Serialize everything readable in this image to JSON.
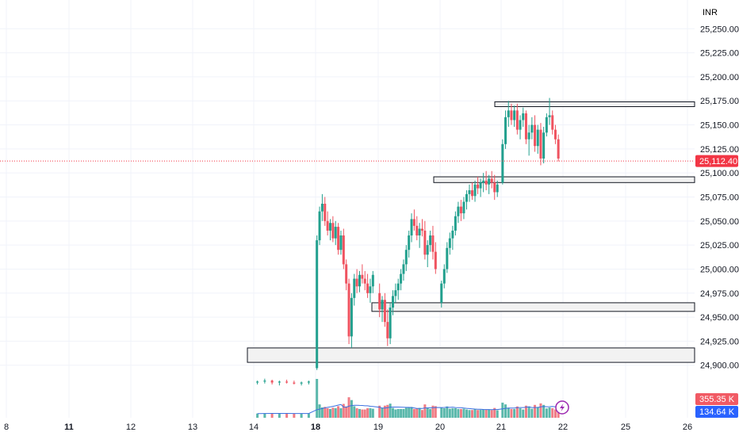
{
  "currency_label": "INR",
  "colors": {
    "up": "#22a08e",
    "down": "#ef5360",
    "up_volume": "#5ab8ab",
    "down_volume": "#f07c85",
    "volume_ma": "#3b6fe0",
    "grid": "#f0f3fa",
    "axis_text": "#131722",
    "price_line": "#f23645",
    "zone_fill": "#f2f2f2",
    "zone_border": "#131722",
    "vol_badge_1": "#f15a64",
    "vol_badge_2": "#2962ff"
  },
  "chart_data": {
    "type": "candlestick",
    "y_axis": {
      "range": [
        24880,
        25270
      ],
      "tick_values": [
        24900,
        24925,
        24950,
        24975,
        25000,
        25025,
        25050,
        25075,
        25100,
        25125,
        25150,
        25175,
        25200,
        25225,
        25250
      ],
      "tick_labels": [
        "24,900.00",
        "24,925.00",
        "24,950.00",
        "24,975.00",
        "25,000.00",
        "25,025.00",
        "25,050.00",
        "25,075.00",
        "25,100.00",
        "25,125.00",
        "25,150.00",
        "25,175.00",
        "25,200.00",
        "25,225.00",
        "25,250.00"
      ]
    },
    "x_axis": {
      "days": [
        "8",
        "11",
        "12",
        "13",
        "14",
        "18",
        "19",
        "20",
        "21",
        "22",
        "25",
        "26"
      ],
      "bold_days": [
        "11",
        "18"
      ]
    },
    "current_price": 25112.4,
    "current_price_label": "25,112.40",
    "volume_labels": [
      "355.35 K",
      "134.64 K"
    ],
    "grid": true,
    "legend": "none",
    "zones": [
      {
        "from_day": "21",
        "low": 25169,
        "high": 25174
      },
      {
        "from_day": "20",
        "low": 25090,
        "high": 25096
      },
      {
        "from_day": "19",
        "low": 24956,
        "high": 24965
      },
      {
        "from_day": "14",
        "low": 24903,
        "high": 24918
      }
    ],
    "sessions": [
      {
        "day": "14",
        "candles": [
          [
            24882,
            24884,
            24880,
            24883
          ],
          [
            24883,
            24886,
            24881,
            24884
          ],
          [
            24884,
            24885,
            24880,
            24882
          ],
          [
            24882,
            24884,
            24879,
            24883
          ],
          [
            24883,
            24885,
            24881,
            24882
          ],
          [
            24882,
            24884,
            24880,
            24881
          ],
          [
            24881,
            24883,
            24879,
            24882
          ],
          [
            24882,
            24884,
            24880,
            24883
          ]
        ]
      },
      {
        "day": "18",
        "candles": [
          [
            24897,
            25035,
            24895,
            25030
          ],
          [
            25030,
            25065,
            25025,
            25060
          ],
          [
            25060,
            25078,
            25050,
            25068
          ],
          [
            25068,
            25075,
            25045,
            25050
          ],
          [
            25050,
            25060,
            25035,
            25040
          ],
          [
            25040,
            25052,
            25030,
            25048
          ],
          [
            25048,
            25055,
            25028,
            25032
          ],
          [
            25032,
            25050,
            25025,
            25044
          ],
          [
            25044,
            25048,
            25015,
            25020
          ],
          [
            25020,
            25040,
            25015,
            25035
          ],
          [
            25035,
            25042,
            25000,
            25005
          ],
          [
            25005,
            25010,
            24978,
            24985
          ],
          [
            24985,
            24990,
            24922,
            24930
          ],
          [
            24930,
            24975,
            24918,
            24970
          ],
          [
            24970,
            24995,
            24962,
            24990
          ],
          [
            24990,
            25000,
            24975,
            24982
          ],
          [
            24982,
            24998,
            24976,
            24994
          ],
          [
            24994,
            25005,
            24985,
            24990
          ],
          [
            24990,
            24998,
            24978,
            24985
          ],
          [
            24985,
            24995,
            24970,
            24975
          ],
          [
            24975,
            24990,
            24965,
            24982
          ],
          [
            24982,
            24998,
            24975,
            24994
          ]
        ]
      },
      {
        "day": "19",
        "candles": [
          [
            24975,
            24985,
            24950,
            24958
          ],
          [
            24958,
            24972,
            24945,
            24968
          ],
          [
            24968,
            24975,
            24940,
            24945
          ],
          [
            24945,
            24958,
            24920,
            24928
          ],
          [
            24928,
            24965,
            24922,
            24960
          ],
          [
            24960,
            24978,
            24952,
            24972
          ],
          [
            24972,
            24985,
            24965,
            24978
          ],
          [
            24978,
            24990,
            24968,
            24985
          ],
          [
            24985,
            25000,
            24978,
            24995
          ],
          [
            24995,
            25010,
            24988,
            25005
          ],
          [
            25005,
            25025,
            24998,
            25020
          ],
          [
            25020,
            25040,
            25012,
            25035
          ],
          [
            25035,
            25058,
            25028,
            25052
          ],
          [
            25052,
            25062,
            25040,
            25045
          ],
          [
            25045,
            25055,
            25030,
            25035
          ],
          [
            25035,
            25048,
            25022,
            25042
          ],
          [
            25042,
            25052,
            25034,
            25040
          ],
          [
            25040,
            25050,
            25010,
            25015
          ],
          [
            25015,
            25030,
            25002,
            25025
          ],
          [
            25025,
            25040,
            25018,
            25035
          ],
          [
            25035,
            25045,
            25010,
            25018
          ],
          [
            25018,
            25028,
            24995,
            25000
          ]
        ]
      },
      {
        "day": "20",
        "candles": [
          [
            24965,
            24988,
            24960,
            24985
          ],
          [
            24985,
            25005,
            24980,
            25000
          ],
          [
            25000,
            25028,
            24996,
            25022
          ],
          [
            25022,
            25038,
            25015,
            25032
          ],
          [
            25032,
            25045,
            25020,
            25040
          ],
          [
            25040,
            25060,
            25035,
            25055
          ],
          [
            25055,
            25070,
            25048,
            25065
          ],
          [
            25065,
            25072,
            25050,
            25058
          ],
          [
            25058,
            25075,
            25052,
            25070
          ],
          [
            25070,
            25082,
            25062,
            25078
          ],
          [
            25078,
            25088,
            25070,
            25082
          ],
          [
            25082,
            25090,
            25072,
            25076
          ],
          [
            25076,
            25092,
            25070,
            25088
          ],
          [
            25088,
            25096,
            25078,
            25084
          ],
          [
            25084,
            25094,
            25075,
            25090
          ],
          [
            25090,
            25100,
            25080,
            25092
          ],
          [
            25092,
            25102,
            25082,
            25088
          ],
          [
            25088,
            25098,
            25078,
            25094
          ],
          [
            25094,
            25102,
            25084,
            25090
          ],
          [
            25090,
            25098,
            25072,
            25080
          ],
          [
            25080,
            25092,
            25075,
            25088
          ]
        ]
      },
      {
        "day": "21",
        "candles": [
          [
            25090,
            25135,
            25088,
            25130
          ],
          [
            25130,
            25165,
            25125,
            25158
          ],
          [
            25158,
            25175,
            25148,
            25165
          ],
          [
            25165,
            25172,
            25150,
            25155
          ],
          [
            25155,
            25170,
            25148,
            25165
          ],
          [
            25165,
            25172,
            25140,
            25145
          ],
          [
            25145,
            25160,
            25135,
            25155
          ],
          [
            25155,
            25168,
            25148,
            25162
          ],
          [
            25162,
            25165,
            25130,
            25135
          ],
          [
            25135,
            25150,
            25118,
            25142
          ],
          [
            25142,
            25158,
            25135,
            25150
          ],
          [
            25150,
            25160,
            25122,
            25128
          ],
          [
            25128,
            25150,
            25120,
            25145
          ],
          [
            25145,
            25152,
            25108,
            25115
          ],
          [
            25115,
            25148,
            25110,
            25142
          ],
          [
            25142,
            25162,
            25138,
            25158
          ],
          [
            25158,
            25178,
            25150,
            25160
          ],
          [
            25160,
            25165,
            25140,
            25145
          ],
          [
            25145,
            25150,
            25130,
            25135
          ],
          [
            25135,
            25140,
            25112,
            25115
          ]
        ]
      }
    ]
  }
}
